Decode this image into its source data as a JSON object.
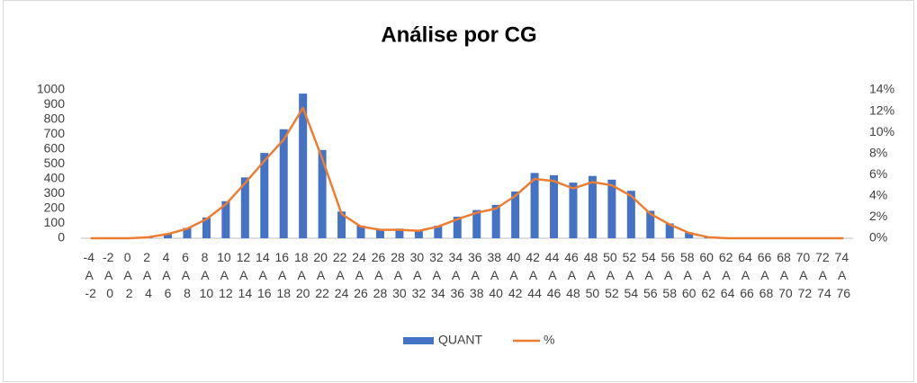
{
  "chart_data": {
    "type": "bar",
    "title": "Análise por CG",
    "categories": [
      "-4 A -2",
      "-2 A 0",
      "0 A 2",
      "2 A 4",
      "4 A 6",
      "6 A 8",
      "8 A 10",
      "10 A 12",
      "12 A 14",
      "14 A 16",
      "16 A 18",
      "18 A 20",
      "20 A 22",
      "22 A 24",
      "24 A 26",
      "26 A 28",
      "28 A 30",
      "30 A 32",
      "32 A 34",
      "34 A 36",
      "36 A 38",
      "38 A 40",
      "40 A 42",
      "42 A 44",
      "44 A 46",
      "46 A 48",
      "48 A 50",
      "50 A 52",
      "52 A 54",
      "54 A 56",
      "56 A 58",
      "58 A 60",
      "60 A 62",
      "62 A 64",
      "64 A 66",
      "66 A 68",
      "68 A 70",
      "70 A 72",
      "72 A 74",
      "74 A 76"
    ],
    "series": [
      {
        "name": "QUANT",
        "type": "bar",
        "color": "#4472c4",
        "values": [
          0,
          0,
          0,
          5,
          30,
          70,
          140,
          250,
          410,
          575,
          735,
          975,
          595,
          180,
          85,
          60,
          65,
          55,
          85,
          145,
          190,
          225,
          315,
          440,
          425,
          375,
          420,
          395,
          320,
          185,
          100,
          40,
          10,
          3,
          0,
          0,
          0,
          0,
          0,
          0
        ]
      },
      {
        "name": "%",
        "type": "line",
        "axis": "y2",
        "color": "#ed7d31",
        "values": [
          0,
          0,
          0,
          0.1,
          0.4,
          0.9,
          1.8,
          3.2,
          5.2,
          7.3,
          9.3,
          12.3,
          7.5,
          2.3,
          1.1,
          0.8,
          0.8,
          0.7,
          1.1,
          1.8,
          2.4,
          2.8,
          4.0,
          5.6,
          5.4,
          4.7,
          5.3,
          5.0,
          4.0,
          2.3,
          1.3,
          0.5,
          0.1,
          0,
          0,
          0,
          0,
          0,
          0,
          0
        ]
      }
    ],
    "ylim": [
      0,
      1000
    ],
    "yticks": [
      0,
      100,
      200,
      300,
      400,
      500,
      600,
      700,
      800,
      900,
      1000
    ],
    "y2lim": [
      0,
      14
    ],
    "y2ticks": [
      {
        "value": 0,
        "label": "0%"
      },
      {
        "value": 2,
        "label": "2%"
      },
      {
        "value": 4,
        "label": "4%"
      },
      {
        "value": 6,
        "label": "6%"
      },
      {
        "value": 8,
        "label": "8%"
      },
      {
        "value": 10,
        "label": "10%"
      },
      {
        "value": 12,
        "label": "12%"
      },
      {
        "value": 14,
        "label": "14%"
      }
    ],
    "grid": false,
    "legend": "bottom"
  }
}
